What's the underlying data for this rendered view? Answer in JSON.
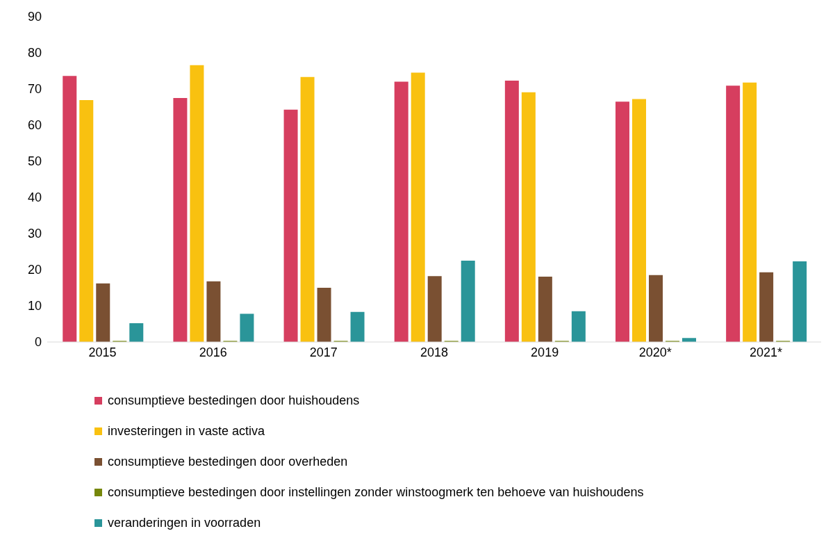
{
  "chart_data": {
    "type": "bar",
    "categories": [
      "2015",
      "2016",
      "2017",
      "2018",
      "2019",
      "2020*",
      "2021*"
    ],
    "series": [
      {
        "name": "consumptieve bestedingen door huishoudens",
        "color": "#d63e5f",
        "values": [
          73.6,
          67.5,
          64.3,
          72.0,
          72.3,
          66.5,
          70.9
        ]
      },
      {
        "name": "investeringen in vaste activa",
        "color": "#f9c110",
        "values": [
          66.9,
          76.6,
          73.3,
          74.5,
          69.1,
          67.2,
          71.8
        ]
      },
      {
        "name": "consumptieve bestedingen door overheden",
        "color": "#7a5032",
        "values": [
          16.2,
          16.8,
          15.0,
          18.2,
          18.1,
          18.5,
          19.3
        ]
      },
      {
        "name": "consumptieve bestedingen door instellingen zonder winstoogmerk ten behoeve van huishoudens",
        "color": "#76870b",
        "values": [
          0.3,
          0.3,
          0.3,
          0.3,
          0.3,
          0.3,
          0.3
        ]
      },
      {
        "name": "veranderingen in voorraden",
        "color": "#2a9599",
        "values": [
          5.2,
          7.8,
          8.3,
          22.5,
          8.5,
          1.1,
          22.3
        ]
      }
    ],
    "ylim": [
      0,
      90
    ],
    "yticks": [
      0,
      10,
      20,
      30,
      40,
      50,
      60,
      70,
      80,
      90
    ],
    "grid": false,
    "legend": "bottom left"
  }
}
